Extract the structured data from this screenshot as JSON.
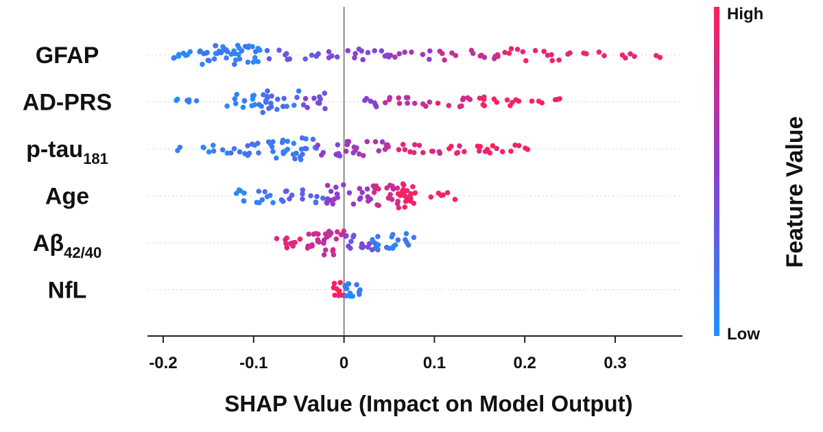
{
  "chart_data": {
    "type": "scatter",
    "subtype": "beeswarm",
    "xlabel": "SHAP Value (Impact on Model Output)",
    "xlim": [
      -0.2,
      0.37
    ],
    "xticks": [
      -0.2,
      -0.1,
      0,
      0.1,
      0.2,
      0.3
    ],
    "xtick_labels": [
      "-0.2",
      "-0.1",
      "0",
      "0.1",
      "0.2",
      "0.3"
    ],
    "zero_line": true,
    "colorbar": {
      "title": "Feature Value",
      "high_label": "High",
      "low_label": "Low",
      "low_color": "#1e90ff",
      "mid_color": "#8a3fd0",
      "high_color": "#ff1f5a",
      "position": "right"
    },
    "features": [
      {
        "name": "GFAP",
        "sub": "",
        "clusters": [
          [
            -0.19,
            -0.16,
            8,
            0.05,
            0.3
          ],
          [
            -0.16,
            -0.12,
            24,
            0.1,
            0.9
          ],
          [
            -0.12,
            -0.09,
            18,
            0.1,
            0.8
          ],
          [
            -0.09,
            -0.03,
            10,
            0.3,
            0.4
          ],
          [
            -0.03,
            0.0,
            5,
            0.4,
            0.3
          ],
          [
            0.0,
            0.05,
            12,
            0.5,
            0.5
          ],
          [
            0.05,
            0.1,
            8,
            0.6,
            0.4
          ],
          [
            0.1,
            0.17,
            12,
            0.75,
            0.5
          ],
          [
            0.17,
            0.26,
            16,
            0.9,
            0.5
          ],
          [
            0.26,
            0.35,
            10,
            0.95,
            0.3
          ]
        ]
      },
      {
        "name": "AD-PRS",
        "sub": "",
        "clusters": [
          [
            -0.19,
            -0.15,
            6,
            0.05,
            0.3
          ],
          [
            -0.13,
            -0.09,
            14,
            0.1,
            0.6
          ],
          [
            -0.09,
            -0.05,
            20,
            0.2,
            0.9
          ],
          [
            -0.05,
            -0.02,
            10,
            0.4,
            0.7
          ],
          [
            0.02,
            0.04,
            6,
            0.55,
            0.4
          ],
          [
            0.04,
            0.1,
            12,
            0.75,
            0.4
          ],
          [
            0.1,
            0.14,
            8,
            0.85,
            0.4
          ],
          [
            0.15,
            0.19,
            10,
            0.95,
            0.5
          ],
          [
            0.19,
            0.24,
            8,
            0.97,
            0.3
          ]
        ]
      },
      {
        "name": "p-tau",
        "sub": "181",
        "clusters": [
          [
            -0.19,
            -0.13,
            8,
            0.1,
            0.3
          ],
          [
            -0.13,
            -0.08,
            14,
            0.15,
            0.6
          ],
          [
            -0.08,
            -0.03,
            26,
            0.15,
            1.0
          ],
          [
            -0.03,
            0.02,
            12,
            0.5,
            0.6
          ],
          [
            0.0,
            0.05,
            14,
            0.65,
            0.6
          ],
          [
            0.06,
            0.11,
            12,
            0.85,
            0.4
          ],
          [
            0.11,
            0.17,
            14,
            0.93,
            0.4
          ],
          [
            0.17,
            0.21,
            6,
            0.97,
            0.3
          ]
        ]
      },
      {
        "name": "Age",
        "sub": "",
        "clusters": [
          [
            -0.12,
            -0.07,
            14,
            0.1,
            0.6
          ],
          [
            -0.07,
            -0.02,
            14,
            0.25,
            0.6
          ],
          [
            -0.02,
            0.03,
            22,
            0.55,
            0.9
          ],
          [
            0.03,
            0.06,
            18,
            0.8,
            0.9
          ],
          [
            0.06,
            0.08,
            22,
            0.97,
            1.0
          ],
          [
            0.09,
            0.13,
            6,
            0.97,
            0.3
          ]
        ]
      },
      {
        "name": "Aβ",
        "sub": "42/40",
        "clusters": [
          [
            -0.08,
            -0.04,
            12,
            0.9,
            0.5
          ],
          [
            -0.04,
            0.0,
            28,
            0.75,
            1.0
          ],
          [
            0.0,
            0.04,
            18,
            0.4,
            0.6
          ],
          [
            0.03,
            0.08,
            18,
            0.1,
            0.8
          ]
        ]
      },
      {
        "name": "NfL",
        "sub": "",
        "clusters": [
          [
            -0.012,
            0.002,
            12,
            0.95,
            0.6
          ],
          [
            0.0,
            0.018,
            12,
            0.1,
            0.6
          ]
        ]
      }
    ]
  }
}
